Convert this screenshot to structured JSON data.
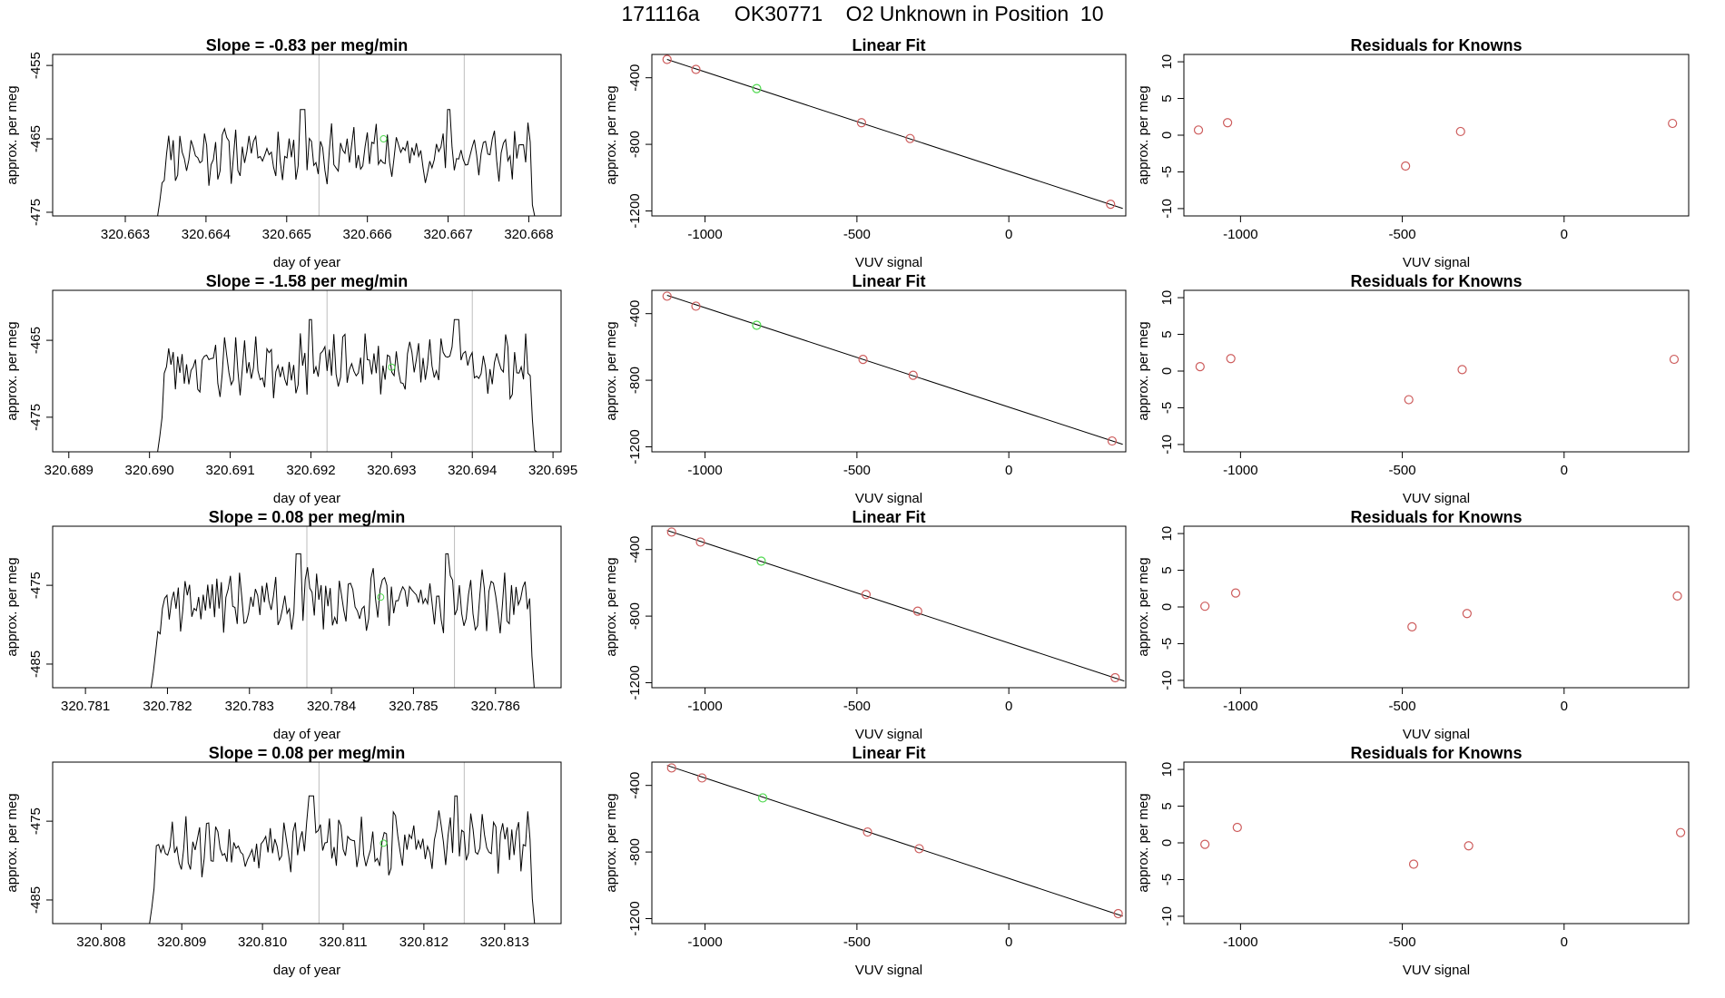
{
  "page": {
    "title": "171116a      OK30771    O2 Unknown in Position  10"
  },
  "chart_data": [
    {
      "type": "line",
      "panel": "trace",
      "row": 1,
      "title": "Slope =  -0.83  per meg/min",
      "xlabel": "day of year",
      "ylabel": "approx. per meg",
      "xlim": [
        320.6621,
        320.6684
      ],
      "ylim": [
        -475.5,
        -453.5
      ],
      "xticks": [
        "320.663",
        "320.664",
        "320.665",
        "320.666",
        "320.667",
        "320.668"
      ],
      "yticks": [
        "-455",
        "-465",
        "-475"
      ],
      "vlines": [
        320.6654,
        320.6672
      ],
      "trace_start": 320.6634,
      "trace_end": 320.6681,
      "base": -467.0,
      "seed": 11,
      "plateau_breaks": [
        320.6652,
        320.667
      ],
      "highlight": {
        "x": 320.6662,
        "y": -465.0
      }
    },
    {
      "type": "scatter",
      "panel": "fit",
      "row": 1,
      "title": "Linear Fit",
      "xlabel": "VUV signal",
      "ylabel": "approx. per meg",
      "xlim": [
        -1175,
        385
      ],
      "ylim": [
        -1230,
        -260
      ],
      "xticks": [
        "-1000",
        "-500",
        "0"
      ],
      "yticks": [
        "-400",
        "-800",
        "-1200"
      ],
      "line": {
        "x0": -1125,
        "y0": -290,
        "x1": 375,
        "y1": -1185
      },
      "points": [
        {
          "x": -1125,
          "y": -290,
          "color": "#cd5c5c"
        },
        {
          "x": -1030,
          "y": -350,
          "color": "#cd5c5c"
        },
        {
          "x": -830,
          "y": -465,
          "color": "#4dd84d"
        },
        {
          "x": -485,
          "y": -670,
          "color": "#cd5c5c"
        },
        {
          "x": -325,
          "y": -765,
          "color": "#cd5c5c"
        },
        {
          "x": 335,
          "y": -1160,
          "color": "#cd5c5c"
        }
      ]
    },
    {
      "type": "scatter",
      "panel": "residuals",
      "row": 1,
      "title": "Residuals for Knowns",
      "xlabel": "VUV signal",
      "ylabel": "approx. per meg",
      "xlim": [
        -1175,
        385
      ],
      "ylim": [
        -11,
        11
      ],
      "xticks": [
        "-1000",
        "-500",
        "0"
      ],
      "yticks": [
        "10",
        "5",
        "0",
        "-5",
        "-10"
      ],
      "points": [
        {
          "x": -1130,
          "y": 0.7,
          "color": "#cd5c5c"
        },
        {
          "x": -1040,
          "y": 1.7,
          "color": "#cd5c5c"
        },
        {
          "x": -490,
          "y": -4.2,
          "color": "#cd5c5c"
        },
        {
          "x": -320,
          "y": 0.5,
          "color": "#cd5c5c"
        },
        {
          "x": 335,
          "y": 1.6,
          "color": "#cd5c5c"
        }
      ]
    },
    {
      "type": "line",
      "panel": "trace",
      "row": 2,
      "title": "Slope =  -1.58  per meg/min",
      "xlabel": "day of year",
      "ylabel": "approx. per meg",
      "xlim": [
        320.6888,
        320.6951
      ],
      "ylim": [
        -479.5,
        -458.5
      ],
      "xticks": [
        "320.689",
        "320.690",
        "320.691",
        "320.692",
        "320.693",
        "320.694",
        "320.695"
      ],
      "yticks": [
        "-465",
        "-475"
      ],
      "vlines": [
        320.6922,
        320.694
      ],
      "trace_start": 320.6901,
      "trace_end": 320.6948,
      "base": -468.3,
      "seed": 23,
      "plateau_breaks": [
        320.692,
        320.6938
      ],
      "highlight": {
        "x": 320.693,
        "y": -468.5
      }
    },
    {
      "type": "scatter",
      "panel": "fit",
      "row": 2,
      "title": "Linear Fit",
      "xlabel": "VUV signal",
      "ylabel": "approx. per meg",
      "xlim": [
        -1175,
        385
      ],
      "ylim": [
        -1230,
        -260
      ],
      "xticks": [
        "-1000",
        "-500",
        "0"
      ],
      "yticks": [
        "-400",
        "-800",
        "-1200"
      ],
      "line": {
        "x0": -1125,
        "y0": -290,
        "x1": 375,
        "y1": -1185
      },
      "points": [
        {
          "x": -1125,
          "y": -295,
          "color": "#cd5c5c"
        },
        {
          "x": -1030,
          "y": -355,
          "color": "#cd5c5c"
        },
        {
          "x": -830,
          "y": -470,
          "color": "#4dd84d"
        },
        {
          "x": -480,
          "y": -675,
          "color": "#cd5c5c"
        },
        {
          "x": -315,
          "y": -770,
          "color": "#cd5c5c"
        },
        {
          "x": 340,
          "y": -1165,
          "color": "#cd5c5c"
        }
      ]
    },
    {
      "type": "scatter",
      "panel": "residuals",
      "row": 2,
      "title": "Residuals for Knowns",
      "xlabel": "VUV signal",
      "ylabel": "approx. per meg",
      "xlim": [
        -1175,
        385
      ],
      "ylim": [
        -11,
        11
      ],
      "xticks": [
        "-1000",
        "-500",
        "0"
      ],
      "yticks": [
        "10",
        "5",
        "0",
        "-5",
        "-10"
      ],
      "points": [
        {
          "x": -1125,
          "y": 0.6,
          "color": "#cd5c5c"
        },
        {
          "x": -1030,
          "y": 1.7,
          "color": "#cd5c5c"
        },
        {
          "x": -480,
          "y": -3.9,
          "color": "#cd5c5c"
        },
        {
          "x": -315,
          "y": 0.2,
          "color": "#cd5c5c"
        },
        {
          "x": 340,
          "y": 1.6,
          "color": "#cd5c5c"
        }
      ]
    },
    {
      "type": "line",
      "panel": "trace",
      "row": 3,
      "title": "Slope =  0.08  per meg/min",
      "xlabel": "day of year",
      "ylabel": "approx. per meg",
      "xlim": [
        320.7806,
        320.7868
      ],
      "ylim": [
        -488,
        -467.5
      ],
      "xticks": [
        "320.781",
        "320.782",
        "320.783",
        "320.784",
        "320.785",
        "320.786"
      ],
      "yticks": [
        "-475",
        "-485"
      ],
      "vlines": [
        320.7837,
        320.7855
      ],
      "trace_start": 320.7818,
      "trace_end": 320.7865,
      "base": -477.0,
      "seed": 37,
      "plateau_breaks": [
        320.7836,
        320.7854
      ],
      "highlight": {
        "x": 320.7846,
        "y": -476.5
      }
    },
    {
      "type": "scatter",
      "panel": "fit",
      "row": 3,
      "title": "Linear Fit",
      "xlabel": "VUV signal",
      "ylabel": "approx. per meg",
      "xlim": [
        -1175,
        385
      ],
      "ylim": [
        -1230,
        -260
      ],
      "xticks": [
        "-1000",
        "-500",
        "0"
      ],
      "yticks": [
        "-400",
        "-800",
        "-1200"
      ],
      "line": {
        "x0": -1125,
        "y0": -285,
        "x1": 380,
        "y1": -1190
      },
      "points": [
        {
          "x": -1110,
          "y": -295,
          "color": "#cd5c5c"
        },
        {
          "x": -1015,
          "y": -355,
          "color": "#cd5c5c"
        },
        {
          "x": -815,
          "y": -470,
          "color": "#4dd84d"
        },
        {
          "x": -470,
          "y": -670,
          "color": "#cd5c5c"
        },
        {
          "x": -300,
          "y": -770,
          "color": "#cd5c5c"
        },
        {
          "x": 350,
          "y": -1170,
          "color": "#cd5c5c"
        }
      ]
    },
    {
      "type": "scatter",
      "panel": "residuals",
      "row": 3,
      "title": "Residuals for Knowns",
      "xlabel": "VUV signal",
      "ylabel": "approx. per meg",
      "xlim": [
        -1175,
        385
      ],
      "ylim": [
        -11,
        11
      ],
      "xticks": [
        "-1000",
        "-500",
        "0"
      ],
      "yticks": [
        "10",
        "5",
        "0",
        "-5",
        "-10"
      ],
      "points": [
        {
          "x": -1110,
          "y": 0.1,
          "color": "#cd5c5c"
        },
        {
          "x": -1015,
          "y": 1.9,
          "color": "#cd5c5c"
        },
        {
          "x": -470,
          "y": -2.7,
          "color": "#cd5c5c"
        },
        {
          "x": -300,
          "y": -0.9,
          "color": "#cd5c5c"
        },
        {
          "x": 350,
          "y": 1.5,
          "color": "#cd5c5c"
        }
      ]
    },
    {
      "type": "line",
      "panel": "trace",
      "row": 4,
      "title": "Slope =  0.08  per meg/min",
      "xlabel": "day of year",
      "ylabel": "approx. per meg",
      "xlim": [
        320.8074,
        320.8137
      ],
      "ylim": [
        -488,
        -467.5
      ],
      "xticks": [
        "320.808",
        "320.809",
        "320.810",
        "320.811",
        "320.812",
        "320.813"
      ],
      "yticks": [
        "-475",
        "-485"
      ],
      "vlines": [
        320.8107,
        320.8125
      ],
      "trace_start": 320.8086,
      "trace_end": 320.8134,
      "base": -477.8,
      "seed": 53,
      "plateau_breaks": [
        320.8106,
        320.8124
      ],
      "highlight": {
        "x": 320.8115,
        "y": -477.8
      }
    },
    {
      "type": "scatter",
      "panel": "fit",
      "row": 4,
      "title": "Linear Fit",
      "xlabel": "VUV signal",
      "ylabel": "approx. per meg",
      "xlim": [
        -1175,
        385
      ],
      "ylim": [
        -1230,
        -260
      ],
      "xticks": [
        "-1000",
        "-500",
        "0"
      ],
      "yticks": [
        "-400",
        "-800",
        "-1200"
      ],
      "line": {
        "x0": -1125,
        "y0": -280,
        "x1": 375,
        "y1": -1185
      },
      "points": [
        {
          "x": -1110,
          "y": -295,
          "color": "#cd5c5c"
        },
        {
          "x": -1010,
          "y": -355,
          "color": "#cd5c5c"
        },
        {
          "x": -810,
          "y": -475,
          "color": "#4dd84d"
        },
        {
          "x": -465,
          "y": -680,
          "color": "#cd5c5c"
        },
        {
          "x": -295,
          "y": -780,
          "color": "#cd5c5c"
        },
        {
          "x": 360,
          "y": -1170,
          "color": "#cd5c5c"
        }
      ]
    },
    {
      "type": "scatter",
      "panel": "residuals",
      "row": 4,
      "title": "Residuals for Knowns",
      "xlabel": "VUV signal",
      "ylabel": "approx. per meg",
      "xlim": [
        -1175,
        385
      ],
      "ylim": [
        -11,
        11
      ],
      "xticks": [
        "-1000",
        "-500",
        "0"
      ],
      "yticks": [
        "10",
        "5",
        "0",
        "-5",
        "-10"
      ],
      "points": [
        {
          "x": -1110,
          "y": -0.2,
          "color": "#cd5c5c"
        },
        {
          "x": -1010,
          "y": 2.1,
          "color": "#cd5c5c"
        },
        {
          "x": -465,
          "y": -2.9,
          "color": "#cd5c5c"
        },
        {
          "x": -295,
          "y": -0.4,
          "color": "#cd5c5c"
        },
        {
          "x": 360,
          "y": 1.4,
          "color": "#cd5c5c"
        }
      ]
    }
  ]
}
